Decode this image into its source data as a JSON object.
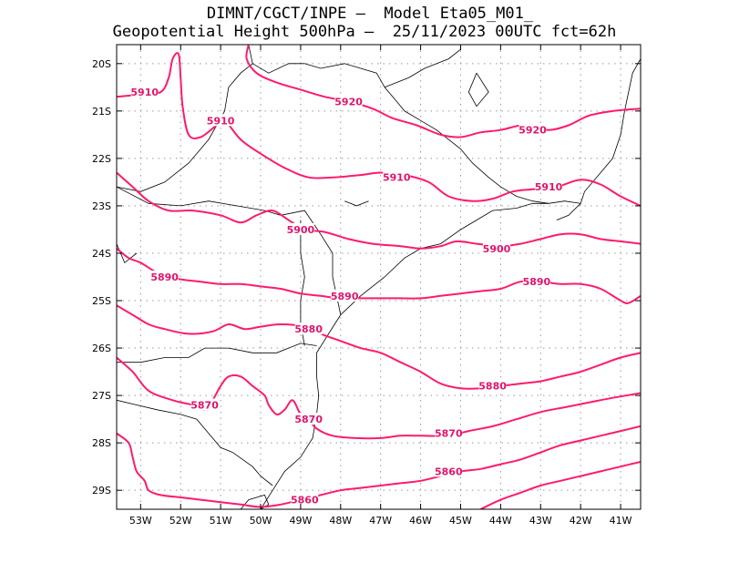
{
  "title": {
    "line1": "DIMNT/CGCT/INPE —  Model Eta05_M01_",
    "line2": "Geopotential Height 500hPa —  25/11/2023 00UTC fct=62h"
  },
  "colors": {
    "contour": "#ff1a6e",
    "label": "#e0156a",
    "coast": "#000000",
    "grid": "#999999",
    "frame": "#000000"
  },
  "axes": {
    "lon_labels": [
      "53W",
      "52W",
      "51W",
      "50W",
      "49W",
      "48W",
      "47W",
      "46W",
      "45W",
      "44W",
      "43W",
      "42W",
      "41W"
    ],
    "lon_values": [
      -53,
      -52,
      -51,
      -50,
      -49,
      -48,
      -47,
      -46,
      -45,
      -44,
      -43,
      -42,
      -41
    ],
    "lat_labels": [
      "20S",
      "21S",
      "22S",
      "23S",
      "24S",
      "25S",
      "26S",
      "27S",
      "28S",
      "29S"
    ],
    "lat_values": [
      -20,
      -21,
      -22,
      -23,
      -24,
      -25,
      -26,
      -27,
      -28,
      -29
    ],
    "lon_range": [
      -53.6,
      -40.5
    ],
    "lat_range": [
      -29.4,
      -19.6
    ]
  },
  "contour_labels": [
    {
      "text": "5920",
      "lon": -47.8,
      "lat": -20.8
    },
    {
      "text": "5920",
      "lon": -43.2,
      "lat": -21.4
    },
    {
      "text": "5910",
      "lon": -52.9,
      "lat": -20.6
    },
    {
      "text": "5910",
      "lon": -51.0,
      "lat": -21.2
    },
    {
      "text": "5910",
      "lon": -46.6,
      "lat": -22.4
    },
    {
      "text": "5910",
      "lon": -42.8,
      "lat": -22.6
    },
    {
      "text": "5900",
      "lon": -49.0,
      "lat": -23.5
    },
    {
      "text": "5900",
      "lon": -44.1,
      "lat": -23.9
    },
    {
      "text": "5890",
      "lon": -52.4,
      "lat": -24.5
    },
    {
      "text": "5890",
      "lon": -47.9,
      "lat": -24.9
    },
    {
      "text": "5890",
      "lon": -43.1,
      "lat": -24.6
    },
    {
      "text": "5880",
      "lon": -48.8,
      "lat": -25.6
    },
    {
      "text": "5880",
      "lon": -44.2,
      "lat": -26.8
    },
    {
      "text": "5870",
      "lon": -51.4,
      "lat": -27.2
    },
    {
      "text": "5870",
      "lon": -48.8,
      "lat": -27.5
    },
    {
      "text": "5870",
      "lon": -45.3,
      "lat": -27.8
    },
    {
      "text": "5860",
      "lon": -48.9,
      "lat": -29.2
    },
    {
      "text": "5860",
      "lon": -45.3,
      "lat": -28.6
    }
  ],
  "contours": [
    [
      [
        -53.6,
        -20.7
      ],
      [
        -53.0,
        -20.65
      ],
      [
        -52.5,
        -20.6
      ],
      [
        -52.3,
        -20.3
      ],
      [
        -52.2,
        -19.9
      ],
      [
        -52.05,
        -19.8
      ],
      [
        -52.0,
        -20.3
      ],
      [
        -51.95,
        -20.9
      ],
      [
        -51.8,
        -21.5
      ],
      [
        -51.5,
        -21.55
      ],
      [
        -51.1,
        -21.3
      ],
      [
        -50.9,
        -21.2
      ],
      [
        -50.5,
        -21.6
      ],
      [
        -50.0,
        -21.9
      ],
      [
        -49.4,
        -22.2
      ],
      [
        -48.8,
        -22.4
      ],
      [
        -48.2,
        -22.4
      ],
      [
        -47.5,
        -22.35
      ],
      [
        -47.0,
        -22.3
      ],
      [
        -46.4,
        -22.35
      ],
      [
        -45.8,
        -22.5
      ],
      [
        -45.3,
        -22.8
      ],
      [
        -44.7,
        -22.9
      ],
      [
        -44.2,
        -22.85
      ],
      [
        -43.7,
        -22.7
      ],
      [
        -43.2,
        -22.65
      ],
      [
        -42.6,
        -22.6
      ],
      [
        -42.0,
        -22.45
      ],
      [
        -41.5,
        -22.55
      ],
      [
        -41.0,
        -22.8
      ],
      [
        -40.5,
        -23.0
      ]
    ],
    [
      [
        -50.3,
        -19.6
      ],
      [
        -50.35,
        -19.9
      ],
      [
        -50.1,
        -20.2
      ],
      [
        -49.6,
        -20.4
      ],
      [
        -49.0,
        -20.55
      ],
      [
        -48.4,
        -20.7
      ],
      [
        -47.8,
        -20.8
      ],
      [
        -47.2,
        -20.95
      ],
      [
        -46.7,
        -21.15
      ],
      [
        -46.1,
        -21.3
      ],
      [
        -45.5,
        -21.5
      ],
      [
        -45.0,
        -21.55
      ],
      [
        -44.5,
        -21.45
      ],
      [
        -44.0,
        -21.4
      ],
      [
        -43.5,
        -21.3
      ],
      [
        -43.2,
        -21.3
      ],
      [
        -42.8,
        -21.4
      ],
      [
        -42.3,
        -21.3
      ],
      [
        -41.8,
        -21.1
      ],
      [
        -41.2,
        -21.0
      ],
      [
        -40.5,
        -20.95
      ]
    ],
    [
      [
        -53.6,
        -22.3
      ],
      [
        -53.2,
        -22.6
      ],
      [
        -52.8,
        -22.9
      ],
      [
        -52.3,
        -23.1
      ],
      [
        -51.7,
        -23.1
      ],
      [
        -51.0,
        -23.2
      ],
      [
        -50.5,
        -23.35
      ],
      [
        -50.1,
        -23.2
      ],
      [
        -49.7,
        -23.1
      ],
      [
        -49.3,
        -23.3
      ],
      [
        -48.9,
        -23.5
      ],
      [
        -48.4,
        -23.55
      ],
      [
        -47.8,
        -23.7
      ],
      [
        -47.2,
        -23.8
      ],
      [
        -46.5,
        -23.85
      ],
      [
        -46.0,
        -23.9
      ],
      [
        -45.5,
        -23.85
      ],
      [
        -45.1,
        -23.75
      ],
      [
        -44.6,
        -23.8
      ],
      [
        -44.0,
        -23.85
      ],
      [
        -43.5,
        -23.8
      ],
      [
        -43.0,
        -23.7
      ],
      [
        -42.5,
        -23.6
      ],
      [
        -42.0,
        -23.6
      ],
      [
        -41.5,
        -23.7
      ],
      [
        -41.0,
        -23.75
      ],
      [
        -40.5,
        -23.8
      ]
    ],
    [
      [
        -53.6,
        -23.9
      ],
      [
        -53.3,
        -24.1
      ],
      [
        -53.0,
        -24.2
      ],
      [
        -52.5,
        -24.45
      ],
      [
        -52.0,
        -24.55
      ],
      [
        -51.5,
        -24.6
      ],
      [
        -51.0,
        -24.65
      ],
      [
        -50.5,
        -24.65
      ],
      [
        -50.0,
        -24.7
      ],
      [
        -49.5,
        -24.75
      ],
      [
        -49.0,
        -24.85
      ],
      [
        -48.5,
        -24.9
      ],
      [
        -48.0,
        -24.95
      ],
      [
        -47.5,
        -24.95
      ],
      [
        -47.0,
        -24.95
      ],
      [
        -46.5,
        -24.95
      ],
      [
        -46.0,
        -24.95
      ],
      [
        -45.5,
        -24.9
      ],
      [
        -45.0,
        -24.85
      ],
      [
        -44.5,
        -24.8
      ],
      [
        -44.0,
        -24.75
      ],
      [
        -43.5,
        -24.6
      ],
      [
        -43.0,
        -24.6
      ],
      [
        -42.5,
        -24.65
      ],
      [
        -42.0,
        -24.65
      ],
      [
        -41.5,
        -24.75
      ],
      [
        -41.0,
        -25.0
      ],
      [
        -40.8,
        -25.05
      ],
      [
        -40.5,
        -24.9
      ]
    ],
    [
      [
        -53.6,
        -25.1
      ],
      [
        -53.2,
        -25.3
      ],
      [
        -52.8,
        -25.5
      ],
      [
        -52.4,
        -25.6
      ],
      [
        -51.8,
        -25.7
      ],
      [
        -51.2,
        -25.65
      ],
      [
        -50.8,
        -25.5
      ],
      [
        -50.4,
        -25.6
      ],
      [
        -50.0,
        -25.55
      ],
      [
        -49.5,
        -25.5
      ],
      [
        -48.9,
        -25.55
      ],
      [
        -48.5,
        -25.7
      ],
      [
        -48.0,
        -25.85
      ],
      [
        -47.5,
        -26.0
      ],
      [
        -47.0,
        -26.1
      ],
      [
        -46.5,
        -26.3
      ],
      [
        -46.0,
        -26.5
      ],
      [
        -45.5,
        -26.75
      ],
      [
        -45.0,
        -26.85
      ],
      [
        -44.5,
        -26.85
      ],
      [
        -44.0,
        -26.8
      ],
      [
        -43.5,
        -26.75
      ],
      [
        -43.0,
        -26.7
      ],
      [
        -42.5,
        -26.6
      ],
      [
        -42.0,
        -26.5
      ],
      [
        -41.5,
        -26.35
      ],
      [
        -41.0,
        -26.2
      ],
      [
        -40.5,
        -26.1
      ]
    ],
    [
      [
        -53.6,
        -26.2
      ],
      [
        -53.2,
        -26.5
      ],
      [
        -52.8,
        -26.9
      ],
      [
        -52.2,
        -27.1
      ],
      [
        -51.7,
        -27.2
      ],
      [
        -51.4,
        -27.3
      ],
      [
        -51.2,
        -27.1
      ],
      [
        -51.0,
        -26.8
      ],
      [
        -50.8,
        -26.6
      ],
      [
        -50.5,
        -26.6
      ],
      [
        -50.2,
        -26.8
      ],
      [
        -49.9,
        -27.0
      ],
      [
        -49.8,
        -27.2
      ],
      [
        -49.6,
        -27.4
      ],
      [
        -49.4,
        -27.3
      ],
      [
        -49.2,
        -27.1
      ],
      [
        -49.0,
        -27.4
      ],
      [
        -48.8,
        -27.5
      ],
      [
        -48.6,
        -27.7
      ],
      [
        -48.2,
        -27.85
      ],
      [
        -47.6,
        -27.9
      ],
      [
        -47.0,
        -27.9
      ],
      [
        -46.5,
        -27.85
      ],
      [
        -46.0,
        -27.85
      ],
      [
        -45.3,
        -27.85
      ],
      [
        -44.8,
        -27.75
      ],
      [
        -44.2,
        -27.65
      ],
      [
        -43.6,
        -27.5
      ],
      [
        -43.0,
        -27.35
      ],
      [
        -42.4,
        -27.25
      ],
      [
        -41.8,
        -27.15
      ],
      [
        -41.2,
        -27.05
      ],
      [
        -40.5,
        -26.95
      ]
    ],
    [
      [
        -53.6,
        -27.8
      ],
      [
        -53.3,
        -28.0
      ],
      [
        -53.2,
        -28.3
      ],
      [
        -53.1,
        -28.6
      ],
      [
        -52.9,
        -28.8
      ],
      [
        -52.8,
        -29.0
      ],
      [
        -52.5,
        -29.1
      ],
      [
        -52.0,
        -29.15
      ],
      [
        -51.5,
        -29.2
      ],
      [
        -51.0,
        -29.25
      ],
      [
        -50.5,
        -29.3
      ],
      [
        -50.0,
        -29.35
      ],
      [
        -49.5,
        -29.3
      ],
      [
        -49.0,
        -29.2
      ],
      [
        -48.5,
        -29.1
      ],
      [
        -48.0,
        -29.0
      ],
      [
        -47.5,
        -28.95
      ],
      [
        -47.0,
        -28.9
      ],
      [
        -46.5,
        -28.85
      ],
      [
        -46.0,
        -28.8
      ],
      [
        -45.5,
        -28.7
      ],
      [
        -45.0,
        -28.6
      ],
      [
        -44.5,
        -28.55
      ],
      [
        -44.0,
        -28.45
      ],
      [
        -43.5,
        -28.35
      ],
      [
        -43.0,
        -28.2
      ],
      [
        -42.5,
        -28.05
      ],
      [
        -42.0,
        -27.95
      ],
      [
        -41.5,
        -27.85
      ],
      [
        -41.0,
        -27.75
      ],
      [
        -40.5,
        -27.65
      ]
    ],
    [
      [
        -44.5,
        -29.4
      ],
      [
        -44.0,
        -29.2
      ],
      [
        -43.5,
        -29.05
      ],
      [
        -43.0,
        -28.9
      ],
      [
        -42.5,
        -28.8
      ],
      [
        -42.0,
        -28.7
      ],
      [
        -41.5,
        -28.6
      ],
      [
        -41.0,
        -28.5
      ],
      [
        -40.5,
        -28.4
      ]
    ]
  ],
  "coastline": [
    [
      [
        -50.3,
        -19.6
      ],
      [
        -50.2,
        -20.0
      ],
      [
        -49.8,
        -20.2
      ],
      [
        -49.3,
        -20.0
      ],
      [
        -48.9,
        -20.0
      ],
      [
        -48.5,
        -20.1
      ],
      [
        -47.9,
        -20.0
      ],
      [
        -47.5,
        -20.1
      ],
      [
        -47.1,
        -20.2
      ],
      [
        -46.9,
        -20.5
      ],
      [
        -46.6,
        -20.8
      ],
      [
        -46.4,
        -21.0
      ],
      [
        -46.0,
        -21.2
      ],
      [
        -45.6,
        -21.4
      ],
      [
        -45.0,
        -21.8
      ],
      [
        -44.7,
        -22.1
      ],
      [
        -44.3,
        -22.4
      ],
      [
        -44.0,
        -22.6
      ],
      [
        -43.6,
        -22.8
      ],
      [
        -43.2,
        -22.9
      ],
      [
        -42.8,
        -22.95
      ],
      [
        -42.4,
        -22.9
      ],
      [
        -42.0,
        -22.95
      ]
    ],
    [
      [
        -42.0,
        -22.95
      ],
      [
        -41.9,
        -22.7
      ],
      [
        -41.6,
        -22.4
      ],
      [
        -41.2,
        -22.0
      ],
      [
        -41.0,
        -21.5
      ],
      [
        -40.9,
        -21.0
      ],
      [
        -40.8,
        -20.6
      ],
      [
        -40.7,
        -20.2
      ],
      [
        -40.5,
        -19.9
      ]
    ],
    [
      [
        -48.0,
        -25.3
      ],
      [
        -47.5,
        -24.9
      ],
      [
        -46.9,
        -24.5
      ],
      [
        -46.4,
        -24.1
      ],
      [
        -46.0,
        -23.9
      ],
      [
        -45.5,
        -23.8
      ],
      [
        -45.0,
        -23.5
      ],
      [
        -44.6,
        -23.3
      ],
      [
        -44.2,
        -23.1
      ],
      [
        -43.6,
        -23.05
      ],
      [
        -43.2,
        -22.95
      ],
      [
        -42.8,
        -22.95
      ]
    ],
    [
      [
        -48.0,
        -25.3
      ],
      [
        -48.3,
        -25.7
      ],
      [
        -48.6,
        -26.1
      ],
      [
        -48.6,
        -26.6
      ],
      [
        -48.55,
        -27.0
      ],
      [
        -48.6,
        -27.4
      ],
      [
        -48.7,
        -27.9
      ],
      [
        -49.0,
        -28.3
      ],
      [
        -49.4,
        -28.6
      ],
      [
        -49.7,
        -29.0
      ],
      [
        -50.0,
        -29.4
      ]
    ],
    [
      [
        -53.6,
        -22.6
      ],
      [
        -53.0,
        -22.7
      ],
      [
        -52.4,
        -22.5
      ],
      [
        -51.8,
        -22.1
      ],
      [
        -51.3,
        -21.6
      ],
      [
        -50.9,
        -21.0
      ],
      [
        -50.8,
        -20.5
      ],
      [
        -50.5,
        -20.2
      ],
      [
        -50.2,
        -20.0
      ]
    ],
    [
      [
        -53.6,
        -22.6
      ],
      [
        -52.8,
        -22.95
      ],
      [
        -52.0,
        -23.0
      ],
      [
        -51.3,
        -22.9
      ],
      [
        -50.6,
        -23.0
      ],
      [
        -49.9,
        -23.1
      ],
      [
        -49.5,
        -23.2
      ],
      [
        -48.9,
        -23.1
      ],
      [
        -48.5,
        -23.6
      ],
      [
        -48.2,
        -24.0
      ],
      [
        -48.2,
        -24.5
      ],
      [
        -48.0,
        -25.3
      ]
    ],
    [
      [
        -53.6,
        -26.3
      ],
      [
        -53.0,
        -26.3
      ],
      [
        -52.4,
        -26.2
      ],
      [
        -51.8,
        -26.2
      ],
      [
        -51.4,
        -26.0
      ],
      [
        -50.8,
        -26.0
      ],
      [
        -50.2,
        -26.1
      ],
      [
        -49.6,
        -26.1
      ],
      [
        -49.0,
        -25.9
      ],
      [
        -48.6,
        -25.95
      ]
    ],
    [
      [
        -49.0,
        -23.3
      ],
      [
        -49.0,
        -24.0
      ],
      [
        -48.9,
        -24.5
      ],
      [
        -49.0,
        -25.0
      ],
      [
        -49.0,
        -25.5
      ],
      [
        -48.9,
        -25.95
      ]
    ],
    [
      [
        -53.6,
        -27.1
      ],
      [
        -53.1,
        -27.2
      ],
      [
        -52.6,
        -27.3
      ],
      [
        -52.0,
        -27.4
      ],
      [
        -51.6,
        -27.5
      ],
      [
        -51.3,
        -27.8
      ],
      [
        -51.0,
        -28.1
      ],
      [
        -50.7,
        -28.2
      ],
      [
        -50.2,
        -28.5
      ],
      [
        -50.0,
        -28.7
      ],
      [
        -49.7,
        -28.9
      ]
    ],
    [
      [
        -53.6,
        -23.8
      ],
      [
        -53.4,
        -24.2
      ],
      [
        -53.1,
        -24.0
      ]
    ],
    [
      [
        -50.0,
        -29.4
      ],
      [
        -49.8,
        -29.3
      ],
      [
        -49.9,
        -29.1
      ],
      [
        -50.3,
        -29.2
      ],
      [
        -50.5,
        -29.4
      ]
    ],
    [
      [
        -46.9,
        -20.5
      ],
      [
        -46.3,
        -20.3
      ],
      [
        -45.9,
        -20.1
      ],
      [
        -45.3,
        -19.9
      ],
      [
        -45.0,
        -19.7
      ]
    ],
    [
      [
        -42.0,
        -22.95
      ],
      [
        -42.3,
        -23.2
      ],
      [
        -42.6,
        -23.3
      ]
    ],
    [
      [
        -47.3,
        -22.9
      ],
      [
        -47.6,
        -23.0
      ],
      [
        -47.9,
        -22.9
      ]
    ],
    [
      [
        -44.6,
        -20.2
      ],
      [
        -44.3,
        -20.6
      ],
      [
        -44.6,
        -20.9
      ],
      [
        -44.8,
        -20.6
      ],
      [
        -44.6,
        -20.2
      ]
    ]
  ]
}
